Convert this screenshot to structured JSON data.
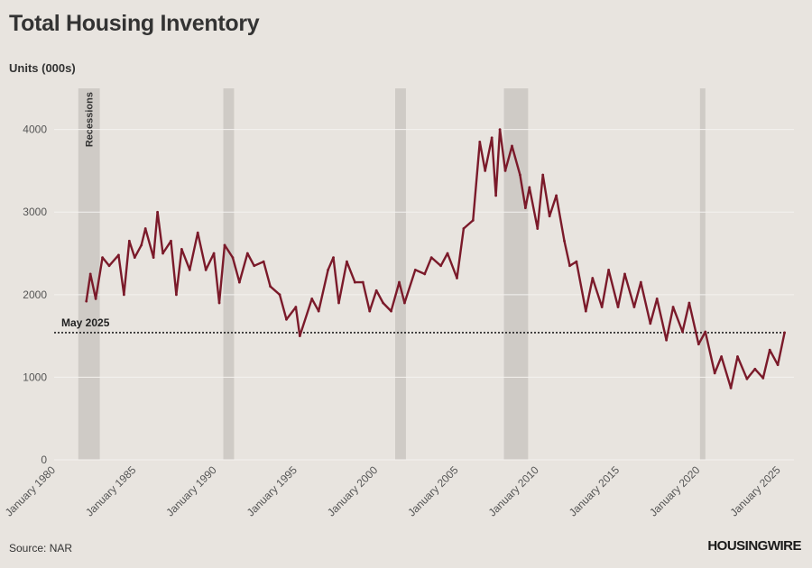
{
  "header": {
    "title": "Total Housing Inventory"
  },
  "footer": {
    "source": "Source: NAR",
    "brand": "HOUSINGWIRE"
  },
  "colors": {
    "background": "#e8e4df",
    "line": "#7b1a2a",
    "recession": "#cfcbc6",
    "grid": "#f4f2ef"
  },
  "chart_data": {
    "type": "line",
    "title": "Total Housing Inventory",
    "ylabel": "Units (000s)",
    "xlabel": "",
    "ylim": [
      0,
      4400
    ],
    "xlim": [
      "1980-01",
      "2025-12"
    ],
    "yticks": [
      0,
      1000,
      2000,
      3000,
      4000
    ],
    "xticks": [
      "January 1980",
      "January 1985",
      "January 1990",
      "January 1995",
      "January 2000",
      "January 2005",
      "January 2010",
      "January 2015",
      "January 2020",
      "January 2025"
    ],
    "grid": "horizontal",
    "recessions": [
      {
        "start": "1981-07",
        "end": "1982-11"
      },
      {
        "start": "1990-07",
        "end": "1991-03"
      },
      {
        "start": "2001-03",
        "end": "2001-11"
      },
      {
        "start": "2007-12",
        "end": "2009-06"
      },
      {
        "start": "2020-02",
        "end": "2020-04"
      }
    ],
    "recession_label": "Recessions",
    "reference_line": {
      "label": "May 2025",
      "value": 1540
    },
    "series": [
      {
        "points": [
          [
            "1982-01",
            1920
          ],
          [
            "1982-04",
            2250
          ],
          [
            "1982-08",
            1950
          ],
          [
            "1983-01",
            2450
          ],
          [
            "1983-06",
            2350
          ],
          [
            "1984-01",
            2480
          ],
          [
            "1984-05",
            2000
          ],
          [
            "1984-09",
            2650
          ],
          [
            "1985-01",
            2450
          ],
          [
            "1985-06",
            2600
          ],
          [
            "1985-09",
            2800
          ],
          [
            "1986-03",
            2450
          ],
          [
            "1986-06",
            3000
          ],
          [
            "1986-10",
            2500
          ],
          [
            "1987-04",
            2650
          ],
          [
            "1987-08",
            2000
          ],
          [
            "1987-12",
            2550
          ],
          [
            "1988-06",
            2300
          ],
          [
            "1988-12",
            2750
          ],
          [
            "1989-06",
            2300
          ],
          [
            "1989-12",
            2500
          ],
          [
            "1990-04",
            1900
          ],
          [
            "1990-08",
            2600
          ],
          [
            "1991-02",
            2450
          ],
          [
            "1991-07",
            2150
          ],
          [
            "1992-01",
            2500
          ],
          [
            "1992-06",
            2350
          ],
          [
            "1993-01",
            2400
          ],
          [
            "1993-06",
            2100
          ],
          [
            "1994-01",
            2000
          ],
          [
            "1994-06",
            1700
          ],
          [
            "1995-01",
            1850
          ],
          [
            "1995-04",
            1500
          ],
          [
            "1996-01",
            1950
          ],
          [
            "1996-06",
            1800
          ],
          [
            "1997-01",
            2300
          ],
          [
            "1997-05",
            2450
          ],
          [
            "1997-09",
            1900
          ],
          [
            "1998-03",
            2400
          ],
          [
            "1998-09",
            2150
          ],
          [
            "1999-03",
            2150
          ],
          [
            "1999-08",
            1800
          ],
          [
            "2000-01",
            2050
          ],
          [
            "2000-06",
            1900
          ],
          [
            "2000-12",
            1800
          ],
          [
            "2001-06",
            2150
          ],
          [
            "2001-10",
            1900
          ],
          [
            "2002-06",
            2300
          ],
          [
            "2003-01",
            2250
          ],
          [
            "2003-06",
            2450
          ],
          [
            "2004-01",
            2350
          ],
          [
            "2004-06",
            2500
          ],
          [
            "2005-01",
            2200
          ],
          [
            "2005-06",
            2800
          ],
          [
            "2006-01",
            2900
          ],
          [
            "2006-06",
            3850
          ],
          [
            "2006-10",
            3500
          ],
          [
            "2007-03",
            3900
          ],
          [
            "2007-06",
            3200
          ],
          [
            "2007-09",
            4000
          ],
          [
            "2008-01",
            3500
          ],
          [
            "2008-06",
            3800
          ],
          [
            "2008-12",
            3450
          ],
          [
            "2009-04",
            3050
          ],
          [
            "2009-07",
            3300
          ],
          [
            "2010-01",
            2800
          ],
          [
            "2010-05",
            3450
          ],
          [
            "2010-10",
            2950
          ],
          [
            "2011-03",
            3200
          ],
          [
            "2011-09",
            2650
          ],
          [
            "2012-01",
            2350
          ],
          [
            "2012-06",
            2400
          ],
          [
            "2013-01",
            1800
          ],
          [
            "2013-06",
            2200
          ],
          [
            "2014-01",
            1850
          ],
          [
            "2014-06",
            2300
          ],
          [
            "2015-01",
            1850
          ],
          [
            "2015-06",
            2250
          ],
          [
            "2016-01",
            1850
          ],
          [
            "2016-06",
            2150
          ],
          [
            "2017-01",
            1650
          ],
          [
            "2017-06",
            1950
          ],
          [
            "2018-01",
            1450
          ],
          [
            "2018-06",
            1850
          ],
          [
            "2019-01",
            1550
          ],
          [
            "2019-06",
            1900
          ],
          [
            "2020-01",
            1400
          ],
          [
            "2020-06",
            1550
          ],
          [
            "2021-01",
            1050
          ],
          [
            "2021-06",
            1250
          ],
          [
            "2022-01",
            870
          ],
          [
            "2022-06",
            1250
          ],
          [
            "2023-01",
            980
          ],
          [
            "2023-07",
            1100
          ],
          [
            "2024-01",
            990
          ],
          [
            "2024-06",
            1330
          ],
          [
            "2024-12",
            1150
          ],
          [
            "2025-05",
            1540
          ]
        ]
      }
    ]
  }
}
